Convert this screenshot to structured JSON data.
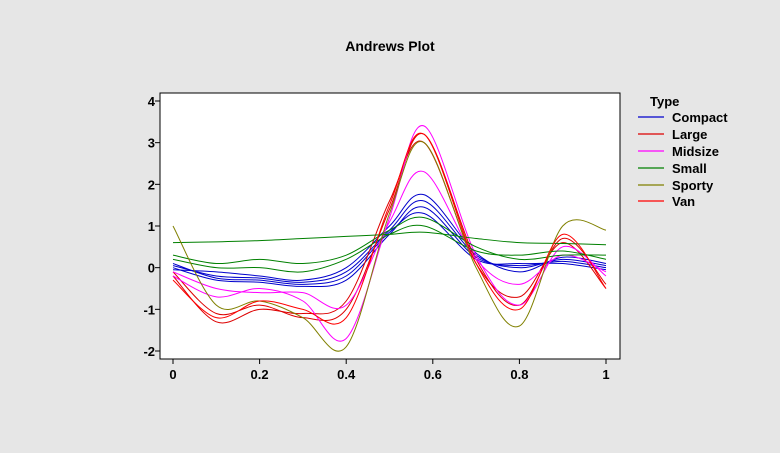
{
  "chart_data": {
    "type": "line",
    "title": "Andrews Plot",
    "xlabel": "",
    "ylabel": "",
    "xlim": [
      0,
      1
    ],
    "ylim": [
      -2,
      4
    ],
    "x_ticks": [
      "0",
      "0.2",
      "0.4",
      "0.6",
      "0.8",
      "1"
    ],
    "y_ticks": [
      "-2",
      "-1",
      "0",
      "1",
      "2",
      "3",
      "4"
    ],
    "grid": false,
    "legend_position": "right",
    "legend": {
      "title": "Type",
      "entries": [
        {
          "label": "Compact",
          "color": "#0000cc"
        },
        {
          "label": "Large",
          "color": "#dd0000"
        },
        {
          "label": "Midsize",
          "color": "#ff00ff"
        },
        {
          "label": "Small",
          "color": "#008000"
        },
        {
          "label": "Sporty",
          "color": "#808000"
        },
        {
          "label": "Van",
          "color": "#ff0000"
        }
      ]
    },
    "series": [
      {
        "name": "Compact",
        "color": "#0000cc",
        "curves": [
          {
            "x": [
              0,
              0.1,
              0.2,
              0.3,
              0.4,
              0.5,
              0.58,
              0.7,
              0.8,
              0.9,
              1
            ],
            "y": [
              0.05,
              -0.2,
              -0.25,
              -0.35,
              -0.1,
              0.9,
              1.6,
              0.3,
              0.0,
              0.2,
              0.05
            ]
          },
          {
            "x": [
              0,
              0.1,
              0.2,
              0.3,
              0.4,
              0.5,
              0.58,
              0.7,
              0.8,
              0.9,
              1
            ],
            "y": [
              0.0,
              -0.3,
              -0.35,
              -0.45,
              -0.3,
              0.8,
              1.45,
              0.25,
              0.05,
              0.15,
              0.0
            ]
          },
          {
            "x": [
              0,
              0.1,
              0.2,
              0.3,
              0.4,
              0.5,
              0.58,
              0.7,
              0.8,
              0.9,
              1
            ],
            "y": [
              -0.05,
              -0.1,
              -0.2,
              -0.3,
              0.0,
              1.0,
              1.75,
              0.35,
              -0.1,
              0.25,
              0.1
            ]
          },
          {
            "x": [
              0,
              0.1,
              0.2,
              0.3,
              0.4,
              0.5,
              0.58,
              0.7,
              0.8,
              0.9,
              1
            ],
            "y": [
              0.1,
              -0.25,
              -0.3,
              -0.4,
              -0.2,
              0.85,
              1.3,
              0.2,
              0.1,
              0.1,
              -0.05
            ]
          }
        ]
      },
      {
        "name": "Large",
        "color": "#dd0000",
        "curves": [
          {
            "x": [
              0,
              0.1,
              0.2,
              0.3,
              0.4,
              0.5,
              0.58,
              0.7,
              0.8,
              0.9,
              1
            ],
            "y": [
              -0.1,
              -1.1,
              -0.9,
              -1.2,
              -1.0,
              1.4,
              3.2,
              0.2,
              -0.9,
              0.7,
              -0.4
            ]
          },
          {
            "x": [
              0,
              0.1,
              0.2,
              0.3,
              0.4,
              0.5,
              0.58,
              0.7,
              0.8,
              0.9,
              1
            ],
            "y": [
              -0.2,
              -1.3,
              -1.0,
              -1.1,
              -0.8,
              1.6,
              3.0,
              0.1,
              -0.7,
              0.6,
              -0.5
            ]
          }
        ]
      },
      {
        "name": "Midsize",
        "color": "#ff00ff",
        "curves": [
          {
            "x": [
              0,
              0.1,
              0.2,
              0.3,
              0.4,
              0.5,
              0.58,
              0.7,
              0.8,
              0.9,
              1
            ],
            "y": [
              -0.2,
              -0.7,
              -0.5,
              -0.8,
              -1.7,
              1.2,
              3.4,
              0.3,
              -0.9,
              0.5,
              -0.2
            ]
          },
          {
            "x": [
              0,
              0.1,
              0.2,
              0.3,
              0.4,
              0.5,
              0.58,
              0.7,
              0.8,
              0.9,
              1
            ],
            "y": [
              -0.1,
              -0.5,
              -0.6,
              -0.6,
              -0.9,
              1.1,
              2.3,
              0.2,
              -0.4,
              0.3,
              -0.1
            ]
          }
        ]
      },
      {
        "name": "Small",
        "color": "#008000",
        "curves": [
          {
            "x": [
              0,
              0.1,
              0.2,
              0.3,
              0.4,
              0.5,
              0.58,
              0.7,
              0.8,
              0.9,
              1
            ],
            "y": [
              0.6,
              0.62,
              0.65,
              0.7,
              0.75,
              0.8,
              0.85,
              0.7,
              0.6,
              0.58,
              0.55
            ]
          },
          {
            "x": [
              0,
              0.1,
              0.2,
              0.3,
              0.4,
              0.5,
              0.58,
              0.7,
              0.8,
              0.9,
              1
            ],
            "y": [
              0.3,
              0.1,
              0.2,
              0.1,
              0.3,
              0.9,
              1.2,
              0.5,
              0.2,
              0.3,
              0.3
            ]
          },
          {
            "x": [
              0,
              0.1,
              0.2,
              0.3,
              0.4,
              0.5,
              0.58,
              0.7,
              0.8,
              0.9,
              1
            ],
            "y": [
              0.2,
              0.0,
              0.0,
              -0.1,
              0.2,
              0.8,
              1.0,
              0.4,
              0.3,
              0.4,
              0.2
            ]
          }
        ]
      },
      {
        "name": "Sporty",
        "color": "#808000",
        "curves": [
          {
            "x": [
              0,
              0.1,
              0.2,
              0.3,
              0.4,
              0.5,
              0.58,
              0.7,
              0.8,
              0.9,
              1
            ],
            "y": [
              1.0,
              -0.9,
              -0.8,
              -1.2,
              -1.9,
              1.3,
              3.0,
              0.0,
              -1.4,
              1.0,
              0.9
            ]
          }
        ]
      },
      {
        "name": "Van",
        "color": "#ff0000",
        "curves": [
          {
            "x": [
              0,
              0.1,
              0.2,
              0.3,
              0.4,
              0.5,
              0.58,
              0.7,
              0.8,
              0.9,
              1
            ],
            "y": [
              -0.3,
              -1.2,
              -0.8,
              -1.0,
              -1.2,
              1.5,
              3.2,
              0.1,
              -1.0,
              0.8,
              -0.5
            ]
          }
        ]
      }
    ]
  }
}
